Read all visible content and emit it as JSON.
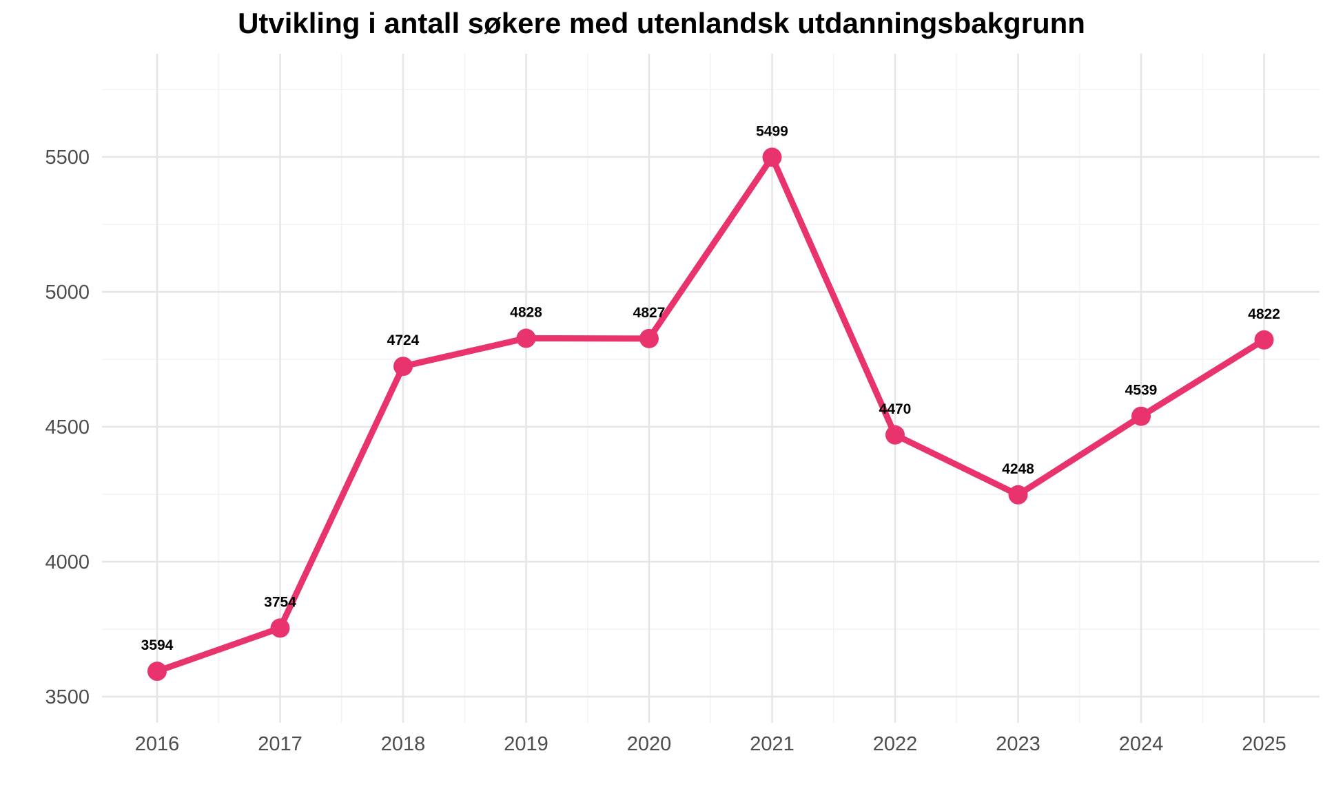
{
  "chart_data": {
    "type": "line",
    "title": "Utvikling i antall søkere med utenlandsk utdanningsbakgrunn",
    "xlabel": "",
    "ylabel": "",
    "categories": [
      "2016",
      "2017",
      "2018",
      "2019",
      "2020",
      "2021",
      "2022",
      "2023",
      "2024",
      "2025"
    ],
    "series": [
      {
        "values": [
          3594,
          3754,
          4724,
          4828,
          4827,
          5499,
          4470,
          4248,
          4539,
          4822
        ],
        "color": "#e8336d"
      }
    ],
    "ylim": [
      3380,
      5800
    ],
    "yticks": [
      3500,
      4000,
      4500,
      5000,
      5500
    ],
    "ytick_labels": [
      "3500",
      "4000",
      "4500",
      "5000",
      "5500"
    ],
    "grid": true,
    "legend": "none",
    "data_labels": true
  }
}
